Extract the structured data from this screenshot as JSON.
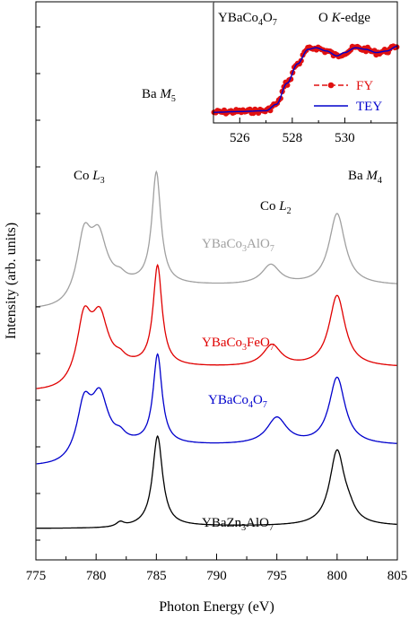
{
  "chart_data": {
    "type": "line",
    "xlabel": "Photon Energy (eV)",
    "ylabel": "Intensity (arb. units)",
    "xlim": [
      775,
      805
    ],
    "x_ticks": [
      775,
      780,
      785,
      790,
      795,
      800,
      805
    ],
    "x_tick_labels": [
      "775",
      "780",
      "785",
      "790",
      "795",
      "800",
      "805"
    ],
    "grid": false,
    "annotations": [
      {
        "id": "co-l3",
        "base": "Co L",
        "sub": "3",
        "x": 779.5
      },
      {
        "id": "ba-m5",
        "base": "Ba M",
        "sub": "5",
        "x": 785
      },
      {
        "id": "co-l2",
        "base": "Co L",
        "sub": "2",
        "x": 795
      },
      {
        "id": "ba-m4",
        "base": "Ba M",
        "sub": "4",
        "x": 801
      }
    ],
    "series": [
      {
        "name": "YBaCo3AlO7",
        "label_parts": [
          "YBaCo",
          "3",
          "AlO",
          "7"
        ],
        "color": "#a0a0a0",
        "baseline": 0.58,
        "scale": 0.48,
        "pre": 0.05,
        "post": 0.32,
        "step": 778.5,
        "peaks": [
          [
            779.0,
            0.6,
            0.7
          ],
          [
            780.2,
            0.52,
            0.8
          ],
          [
            782.0,
            0.06,
            0.5
          ],
          [
            785.0,
            1.25,
            0.45
          ],
          [
            794.5,
            0.22,
            0.9
          ],
          [
            800.0,
            0.8,
            0.8
          ]
        ]
      },
      {
        "name": "YBaCo3FeO7",
        "label_parts": [
          "YBaCo",
          "3",
          "FeO",
          "7"
        ],
        "color": "#e00000",
        "baseline": 0.36,
        "scale": 0.48,
        "pre": 0.05,
        "post": 0.32,
        "step": 778.5,
        "peaks": [
          [
            779.0,
            0.6,
            0.7
          ],
          [
            780.3,
            0.54,
            0.8
          ],
          [
            782.0,
            0.06,
            0.5
          ],
          [
            785.1,
            1.12,
            0.45
          ],
          [
            794.6,
            0.24,
            0.9
          ],
          [
            800.0,
            0.8,
            0.8
          ]
        ]
      },
      {
        "name": "YBaCo4O7",
        "label_parts": [
          "YBaCo",
          "4",
          "O",
          "7"
        ],
        "color": "#0000cc",
        "baseline": 0.16,
        "scale": 0.42,
        "pre": 0.05,
        "post": 0.32,
        "step": 778.5,
        "peaks": [
          [
            779.0,
            0.58,
            0.7
          ],
          [
            780.3,
            0.6,
            0.8
          ],
          [
            782.0,
            0.08,
            0.5
          ],
          [
            785.1,
            1.14,
            0.45
          ],
          [
            795.0,
            0.34,
            1.0
          ],
          [
            800.0,
            0.86,
            0.8
          ]
        ]
      },
      {
        "name": "YBaZn3AlO7",
        "label_parts": [
          "YBaZn",
          "3",
          "AlO",
          "7"
        ],
        "color": "#000000",
        "baseline": 0.0,
        "scale": 0.42,
        "pre": 0.02,
        "post": 0.05,
        "step": 783.0,
        "peaks": [
          [
            782.0,
            0.06,
            0.4
          ],
          [
            785.1,
            1.15,
            0.5
          ],
          [
            800.0,
            0.95,
            0.75
          ],
          [
            801.0,
            0.1,
            0.6
          ]
        ]
      }
    ],
    "inset": {
      "title_parts": [
        "YBaCo",
        "4",
        "O",
        "7"
      ],
      "edge_parts": [
        "O ",
        "K",
        "-edge"
      ],
      "xlim": [
        525,
        532
      ],
      "x_ticks": [
        526,
        528,
        530
      ],
      "x_tick_labels": [
        "526",
        "528",
        "530"
      ],
      "legend_position": "right",
      "series": [
        {
          "name": "FY",
          "color": "#e01010",
          "marker": "circle"
        },
        {
          "name": "TEY",
          "color": "#0000cc",
          "marker": "none"
        }
      ],
      "curve": {
        "x": [
          525.0,
          526.0,
          527.0,
          527.4,
          527.8,
          528.2,
          528.6,
          528.9,
          529.3,
          529.7,
          530.0,
          530.4,
          530.8,
          531.2,
          531.6,
          532.0
        ],
        "y": [
          0.02,
          0.03,
          0.04,
          0.12,
          0.38,
          0.62,
          0.8,
          0.82,
          0.78,
          0.72,
          0.76,
          0.82,
          0.8,
          0.76,
          0.78,
          0.84
        ]
      }
    }
  }
}
